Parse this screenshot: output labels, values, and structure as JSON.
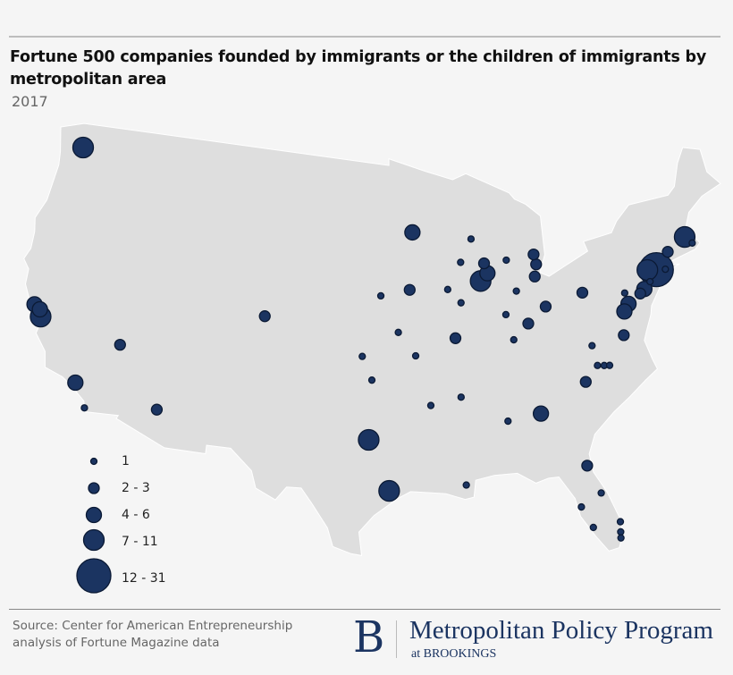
{
  "title": "Fortune 500 companies founded by immigrants or the children of immigrants by metropolitan area",
  "subtitle": "2017",
  "colors": {
    "bubble_fill": "#1b3461",
    "bubble_stroke": "#0b1a35",
    "land": "#dedede",
    "borders": "#ffffff"
  },
  "legend": [
    {
      "label": "1",
      "size_class": 1
    },
    {
      "label": "2 - 3",
      "size_class": 2
    },
    {
      "label": "4 - 6",
      "size_class": 3
    },
    {
      "label": "7 - 11",
      "size_class": 4
    },
    {
      "label": "12 - 31",
      "size_class": 5
    }
  ],
  "bubbles": [
    {
      "lon": -122.3,
      "lat": 47.6,
      "size_class": 4
    },
    {
      "lon": -122.6,
      "lat": 37.9,
      "size_class": 3
    },
    {
      "lon": -122.1,
      "lat": 37.7,
      "size_class": 3
    },
    {
      "lon": -121.9,
      "lat": 37.3,
      "size_class": 4
    },
    {
      "lon": -118.2,
      "lat": 34.05,
      "size_class": 3
    },
    {
      "lon": -117.16,
      "lat": 32.72,
      "size_class": 1
    },
    {
      "lon": -115.6,
      "lat": 36.8,
      "size_class": 2
    },
    {
      "lon": -112.07,
      "lat": 33.45,
      "size_class": 2
    },
    {
      "lon": -104.99,
      "lat": 39.74,
      "size_class": 2
    },
    {
      "lon": -96.8,
      "lat": 32.78,
      "size_class": 4
    },
    {
      "lon": -95.37,
      "lat": 29.76,
      "size_class": 4
    },
    {
      "lon": -93.27,
      "lat": 44.98,
      "size_class": 3
    },
    {
      "lon": -95.93,
      "lat": 41.26,
      "size_class": 1
    },
    {
      "lon": -93.62,
      "lat": 41.59,
      "size_class": 2
    },
    {
      "lon": -94.58,
      "lat": 39.1,
      "size_class": 1
    },
    {
      "lon": -97.34,
      "lat": 37.69,
      "size_class": 1
    },
    {
      "lon": -93.29,
      "lat": 37.7,
      "size_class": 1
    },
    {
      "lon": -96.6,
      "lat": 36.3,
      "size_class": 1
    },
    {
      "lon": -92.29,
      "lat": 34.75,
      "size_class": 1
    },
    {
      "lon": -90.05,
      "lat": 35.15,
      "size_class": 1
    },
    {
      "lon": -86.8,
      "lat": 33.52,
      "size_class": 1
    },
    {
      "lon": -84.39,
      "lat": 33.75,
      "size_class": 3
    },
    {
      "lon": -90.07,
      "lat": 29.95,
      "size_class": 1
    },
    {
      "lon": -90.2,
      "lat": 38.63,
      "size_class": 2
    },
    {
      "lon": -87.9,
      "lat": 41.88,
      "size_class": 4
    },
    {
      "lon": -87.3,
      "lat": 42.3,
      "size_class": 3
    },
    {
      "lon": -87.5,
      "lat": 42.9,
      "size_class": 2
    },
    {
      "lon": -89.4,
      "lat": 43.07,
      "size_class": 1
    },
    {
      "lon": -88.4,
      "lat": 44.4,
      "size_class": 1
    },
    {
      "lon": -90.58,
      "lat": 41.52,
      "size_class": 1
    },
    {
      "lon": -89.59,
      "lat": 40.69,
      "size_class": 1
    },
    {
      "lon": -85.14,
      "lat": 41.08,
      "size_class": 1
    },
    {
      "lon": -85.67,
      "lat": 42.96,
      "size_class": 1
    },
    {
      "lon": -83.3,
      "lat": 42.5,
      "size_class": 2
    },
    {
      "lon": -83.4,
      "lat": 43.1,
      "size_class": 2
    },
    {
      "lon": -83.54,
      "lat": 41.8,
      "size_class": 2
    },
    {
      "lon": -86.16,
      "lat": 39.77,
      "size_class": 1
    },
    {
      "lon": -85.76,
      "lat": 38.25,
      "size_class": 1
    },
    {
      "lon": -84.51,
      "lat": 39.1,
      "size_class": 2
    },
    {
      "lon": -83.0,
      "lat": 39.96,
      "size_class": 2
    },
    {
      "lon": -79.99,
      "lat": 40.44,
      "size_class": 2
    },
    {
      "lon": -73.9,
      "lat": 40.9,
      "size_class": 5
    },
    {
      "lon": -74.6,
      "lat": 41.0,
      "size_class": 4
    },
    {
      "lon": -75.16,
      "lat": 39.95,
      "size_class": 3
    },
    {
      "lon": -75.55,
      "lat": 39.74,
      "size_class": 2
    },
    {
      "lon": -74.6,
      "lat": 40.3,
      "size_class": 1
    },
    {
      "lon": -73.2,
      "lat": 40.8,
      "size_class": 1
    },
    {
      "lon": -72.68,
      "lat": 41.76,
      "size_class": 2
    },
    {
      "lon": -71.06,
      "lat": 42.36,
      "size_class": 4
    },
    {
      "lon": -70.6,
      "lat": 41.9,
      "size_class": 1
    },
    {
      "lon": -76.61,
      "lat": 39.29,
      "size_class": 3
    },
    {
      "lon": -76.73,
      "lat": 39.96,
      "size_class": 1
    },
    {
      "lon": -77.04,
      "lat": 38.9,
      "size_class": 3
    },
    {
      "lon": -77.44,
      "lat": 37.54,
      "size_class": 2
    },
    {
      "lon": -79.94,
      "lat": 37.27,
      "size_class": 1
    },
    {
      "lon": -79.79,
      "lat": 36.07,
      "size_class": 1
    },
    {
      "lon": -79.3,
      "lat": 36.0,
      "size_class": 1
    },
    {
      "lon": -78.9,
      "lat": 35.95,
      "size_class": 1
    },
    {
      "lon": -80.84,
      "lat": 35.23,
      "size_class": 2
    },
    {
      "lon": -81.66,
      "lat": 30.33,
      "size_class": 2
    },
    {
      "lon": -81.0,
      "lat": 28.6,
      "size_class": 1
    },
    {
      "lon": -82.46,
      "lat": 27.95,
      "size_class": 1
    },
    {
      "lon": -81.87,
      "lat": 26.64,
      "size_class": 1
    },
    {
      "lon": -80.05,
      "lat": 26.72,
      "size_class": 1
    },
    {
      "lon": -80.14,
      "lat": 26.12,
      "size_class": 1
    },
    {
      "lon": -80.19,
      "lat": 25.76,
      "size_class": 1
    }
  ],
  "footer": {
    "source_line1": "Source: Center for American Entrepreneurship",
    "source_line2": "analysis of Fortune Magazine data",
    "logo_letter": "B",
    "logo_main": "Metropolitan Policy Program",
    "logo_sub": "at BROOKINGS"
  }
}
